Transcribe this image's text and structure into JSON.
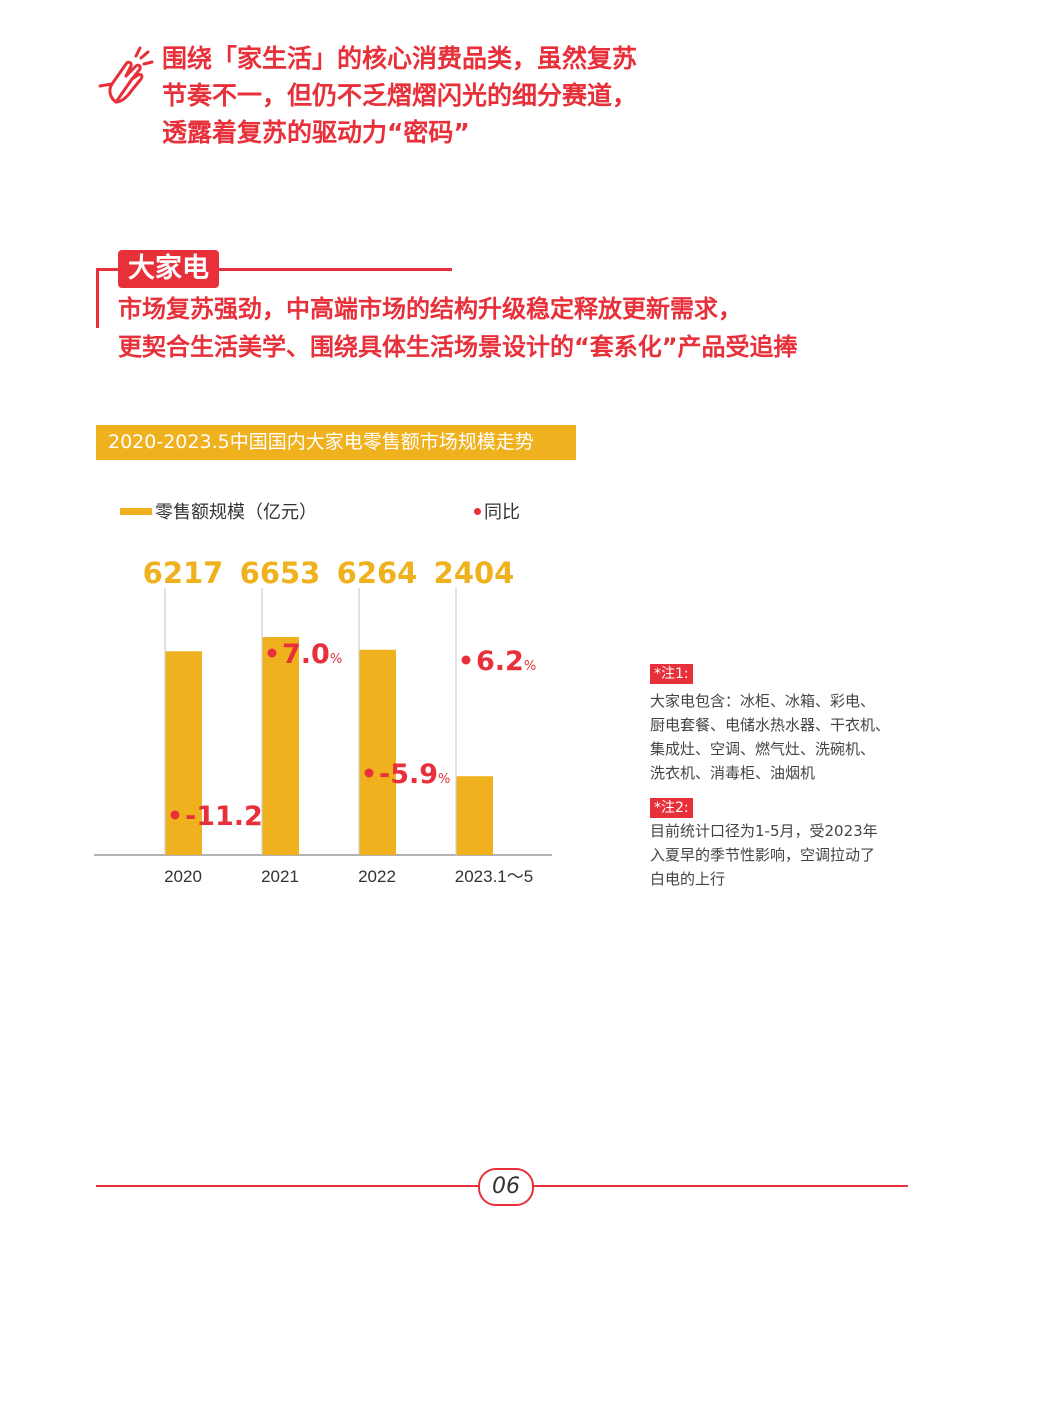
{
  "intro": {
    "icon": "hand-pointing-icon",
    "lines": [
      "围绕「家生活」的核心消费品类，虽然复苏",
      "节奏不一，但仍不乏熠熠闪光的细分赛道，",
      "透露着复苏的驱动力“密码”"
    ]
  },
  "section": {
    "tag": "大家电",
    "lines": [
      "市场复苏强劲，中高端市场的结构升级稳定释放更新需求，",
      "更契合生活美学、围绕具体生活场景设计的“套系化”产品受追捧"
    ]
  },
  "chart_data": {
    "type": "bar",
    "title": "2020-2023.5中国国内大家电零售额市场规模走势",
    "categories": [
      "2020",
      "2021",
      "2022",
      "2023.1～5"
    ],
    "series": [
      {
        "name": "零售额规模（亿元）",
        "values": [
          6217,
          6653,
          6264,
          2404
        ],
        "color": "#f0b11e"
      },
      {
        "name": "同比",
        "values": [
          -11.2,
          7.0,
          -5.9,
          6.2
        ],
        "unit": "%",
        "color": "#e8303a"
      }
    ],
    "yoy_labels": [
      "-11.2",
      "7.0",
      "-5.9",
      "6.2"
    ],
    "yoy_unit": "%",
    "legend_position": "top-left",
    "grid": false
  },
  "notes": [
    {
      "tag": "*注1:",
      "lines": [
        "大家电包含：冰柜、冰箱、彩电、",
        "厨电套餐、电储水热水器、干衣机、",
        "集成灶、空调、燃气灶、洗碗机、",
        "洗衣机、消毒柜、油烟机"
      ]
    },
    {
      "tag": "*注2:",
      "lines": [
        "目前统计口径为1-5月，受2023年",
        "入夏早的季节性影响，空调拉动了",
        "白电的上行"
      ]
    }
  ],
  "footer": {
    "page": "06"
  },
  "colors": {
    "accent": "#e8303a",
    "bar": "#f0b11e"
  }
}
